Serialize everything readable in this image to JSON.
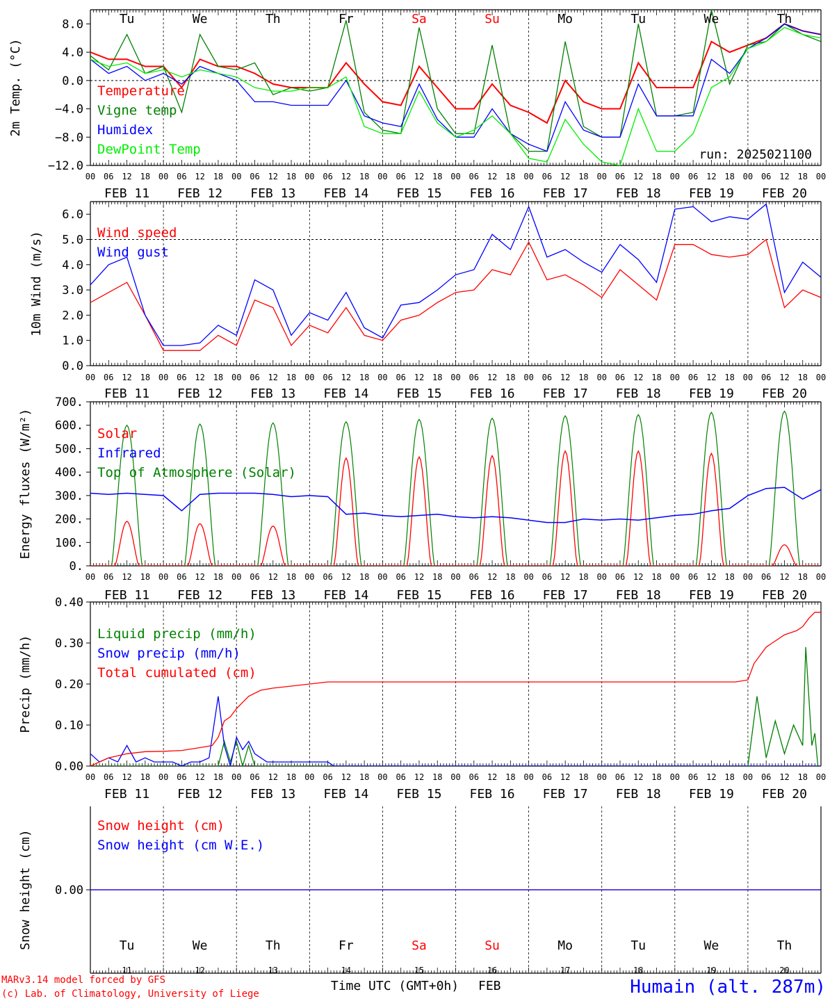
{
  "footer": {
    "credit_line1": "MARv3.14 model forced by GFS",
    "credit_line2": "(c) Lab. of Climatology, University of Liege",
    "xlabel": "Time UTC (GMT+0h)",
    "month": "FEB",
    "station": "Humain (alt. 287m)"
  },
  "colors": {
    "red": "#ff0000",
    "green": "#008000",
    "blue": "#0000ff",
    "lightgreen": "#00ee00",
    "sat_sun": "#ff0000",
    "weekday": "#000000"
  },
  "days": {
    "weekdays": [
      "Tu",
      "We",
      "Th",
      "Fr",
      "Sa",
      "Su",
      "Mo",
      "Tu",
      "We",
      "Th"
    ],
    "weekend": [
      false,
      false,
      false,
      false,
      true,
      true,
      false,
      false,
      false,
      false
    ],
    "dates": [
      "FEB 11",
      "FEB 12",
      "FEB 13",
      "FEB 14",
      "FEB 15",
      "FEB 16",
      "FEB 17",
      "FEB 18",
      "FEB 19",
      "FEB 20"
    ],
    "day_numbers": [
      "11",
      "12",
      "13",
      "14",
      "15",
      "16",
      "17",
      "18",
      "19",
      "20"
    ],
    "hour_labels": [
      "00",
      "06",
      "12",
      "18"
    ],
    "final_hour": "00"
  },
  "chart_data": [
    {
      "type": "line",
      "ylabel": "2m Temp. (°C)",
      "ylim": [
        -12,
        10
      ],
      "yticks": [
        "8.0",
        "4.0",
        "0.0",
        "−4.0",
        "−8.0",
        "−12.0"
      ],
      "ytick_values": [
        8,
        4,
        0,
        -4,
        -8,
        -12
      ],
      "annotation": "run: 2025021100",
      "x_unit": "hours since FEB 11 00 UTC",
      "series": [
        {
          "name": "Temperature",
          "color": "#ff0000",
          "x": [
            0,
            6,
            12,
            18,
            24,
            30,
            36,
            42,
            48,
            54,
            60,
            66,
            72,
            78,
            84,
            90,
            96,
            102,
            108,
            114,
            120,
            126,
            132,
            138,
            144,
            150,
            156,
            162,
            168,
            174,
            180,
            186,
            192,
            198,
            204,
            210,
            216,
            222,
            228,
            234,
            240
          ],
          "values": [
            4.0,
            3.0,
            3.0,
            2.0,
            2.0,
            -1.0,
            3.0,
            2.0,
            2.0,
            1.0,
            -0.5,
            -1.0,
            -1.0,
            -1.0,
            2.5,
            -0.5,
            -3.0,
            -3.5,
            2.0,
            -1.0,
            -4.0,
            -4.0,
            -0.5,
            -3.5,
            -4.5,
            -6.0,
            0.0,
            -3.0,
            -4.0,
            -4.0,
            2.5,
            -1.0,
            -1.0,
            -1.0,
            5.5,
            4.0,
            5.0,
            6.0,
            8.0,
            7.0,
            6.5
          ]
        },
        {
          "name": "Vigne temp",
          "color": "#008000",
          "x": [
            0,
            6,
            12,
            18,
            24,
            30,
            36,
            42,
            48,
            54,
            60,
            66,
            72,
            78,
            84,
            90,
            96,
            102,
            108,
            114,
            120,
            126,
            132,
            138,
            144,
            150,
            156,
            162,
            168,
            174,
            180,
            186,
            192,
            198,
            204,
            210,
            216,
            222,
            228,
            234,
            240
          ],
          "values": [
            3.5,
            1.5,
            6.5,
            1.0,
            2.0,
            -4.5,
            6.5,
            2.0,
            1.5,
            2.5,
            -2.0,
            -1.0,
            -1.5,
            -1.0,
            8.5,
            -4.5,
            -7.0,
            -7.5,
            7.5,
            -4.0,
            -7.5,
            -7.5,
            5.0,
            -7.5,
            -10.0,
            -10.0,
            5.5,
            -6.5,
            -8.0,
            -8.0,
            8.0,
            -5.0,
            -5.0,
            -4.5,
            10.0,
            -0.5,
            5.0,
            5.5,
            8.0,
            6.5,
            5.5
          ]
        },
        {
          "name": "Humidex",
          "color": "#0000ff",
          "x": [
            0,
            6,
            12,
            18,
            24,
            30,
            36,
            42,
            48,
            54,
            60,
            66,
            72,
            78,
            84,
            90,
            96,
            102,
            108,
            114,
            120,
            126,
            132,
            138,
            144,
            150,
            156,
            162,
            168,
            174,
            180,
            186,
            192,
            198,
            204,
            210,
            216,
            222,
            228,
            234,
            240
          ],
          "values": [
            3.0,
            1.0,
            2.0,
            0.0,
            1.0,
            -0.5,
            2.0,
            1.0,
            0.0,
            -3.0,
            -3.0,
            -3.5,
            -3.5,
            -3.5,
            0.0,
            -5.0,
            -6.0,
            -6.5,
            -0.5,
            -5.5,
            -8.0,
            -8.0,
            -4.0,
            -7.5,
            -9.0,
            -10.0,
            -3.0,
            -7.0,
            -8.0,
            -8.0,
            -0.5,
            -5.0,
            -5.0,
            -5.0,
            3.0,
            1.0,
            4.5,
            6.0,
            8.0,
            7.0,
            6.5
          ]
        },
        {
          "name": "DewPoint Temp",
          "color": "#00ee00",
          "x": [
            0,
            6,
            12,
            18,
            24,
            30,
            36,
            42,
            48,
            54,
            60,
            66,
            72,
            78,
            84,
            90,
            96,
            102,
            108,
            114,
            120,
            126,
            132,
            138,
            144,
            150,
            156,
            162,
            168,
            174,
            180,
            186,
            192,
            198,
            204,
            210,
            216,
            222,
            228,
            234,
            240
          ],
          "values": [
            3.0,
            2.0,
            2.5,
            1.0,
            1.5,
            0.5,
            1.5,
            1.0,
            0.5,
            -1.0,
            -1.5,
            -1.5,
            -1.0,
            -1.0,
            0.5,
            -6.5,
            -7.5,
            -7.5,
            -1.5,
            -6.0,
            -8.0,
            -7.0,
            -5.0,
            -7.5,
            -11.0,
            -11.5,
            -5.5,
            -9.0,
            -11.5,
            -12.0,
            -4.0,
            -10.0,
            -10.0,
            -7.5,
            -1.0,
            0.5,
            4.5,
            5.5,
            7.5,
            6.5,
            6.0
          ]
        }
      ]
    },
    {
      "type": "line",
      "ylabel": "10m Wind (m/s)",
      "ylim": [
        0,
        6.5
      ],
      "yticks": [
        "6.0",
        "5.0",
        "4.0",
        "3.0",
        "2.0",
        "1.0",
        "0.0"
      ],
      "ytick_values": [
        6,
        5,
        4,
        3,
        2,
        1,
        0
      ],
      "x_unit": "hours since FEB 11 00 UTC",
      "series": [
        {
          "name": "Wind speed",
          "color": "#ff0000",
          "x": [
            0,
            6,
            12,
            18,
            24,
            30,
            36,
            42,
            48,
            54,
            60,
            66,
            72,
            78,
            84,
            90,
            96,
            102,
            108,
            114,
            120,
            126,
            132,
            138,
            144,
            150,
            156,
            162,
            168,
            174,
            180,
            186,
            192,
            198,
            204,
            210,
            216,
            222,
            228,
            234,
            240
          ],
          "values": [
            2.5,
            2.9,
            3.3,
            2.0,
            0.6,
            0.6,
            0.6,
            1.2,
            0.8,
            2.6,
            2.3,
            0.8,
            1.6,
            1.3,
            2.3,
            1.2,
            1.0,
            1.8,
            2.0,
            2.5,
            2.9,
            3.0,
            3.8,
            3.6,
            4.9,
            3.4,
            3.6,
            3.2,
            2.7,
            3.8,
            3.2,
            2.6,
            4.8,
            4.8,
            4.4,
            4.3,
            4.4,
            5.0,
            2.3,
            3.0,
            2.7
          ]
        },
        {
          "name": "Wind gust",
          "color": "#0000ff",
          "x": [
            0,
            6,
            12,
            18,
            24,
            30,
            36,
            42,
            48,
            54,
            60,
            66,
            72,
            78,
            84,
            90,
            96,
            102,
            108,
            114,
            120,
            126,
            132,
            138,
            144,
            150,
            156,
            162,
            168,
            174,
            180,
            186,
            192,
            198,
            204,
            210,
            216,
            222,
            228,
            234,
            240
          ],
          "values": [
            3.2,
            4.0,
            4.3,
            2.0,
            0.8,
            0.8,
            0.9,
            1.6,
            1.2,
            3.4,
            3.0,
            1.2,
            2.1,
            1.8,
            2.9,
            1.5,
            1.1,
            2.4,
            2.5,
            3.0,
            3.6,
            3.8,
            5.2,
            4.6,
            6.3,
            4.3,
            4.6,
            4.1,
            3.7,
            4.8,
            4.2,
            3.3,
            6.2,
            6.3,
            5.7,
            5.9,
            5.8,
            6.4,
            2.9,
            4.1,
            3.5
          ]
        }
      ]
    },
    {
      "type": "line",
      "ylabel": "Energy fluxes (W/m²)",
      "ylim": [
        0,
        700
      ],
      "yticks": [
        "700.",
        "600.",
        "500.",
        "400.",
        "300.",
        "200.",
        "100.",
        "0."
      ],
      "ytick_values": [
        700,
        600,
        500,
        400,
        300,
        200,
        100,
        0
      ],
      "x_unit": "hours since FEB 11 00 UTC",
      "daily_peaks": {
        "solar": [
          190,
          180,
          170,
          460,
          465,
          470,
          490,
          490,
          480,
          90
        ],
        "top_of_atmosphere": [
          600,
          605,
          610,
          615,
          625,
          630,
          640,
          645,
          655,
          660
        ]
      },
      "series": [
        {
          "name": "Solar",
          "color": "#ff0000",
          "note": "daily curve between ~08 and ~16 UTC, peaks listed in daily_peaks.solar"
        },
        {
          "name": "Infrared",
          "color": "#0000ff",
          "x": [
            0,
            6,
            12,
            18,
            24,
            30,
            36,
            42,
            48,
            54,
            60,
            66,
            72,
            78,
            84,
            90,
            96,
            102,
            108,
            114,
            120,
            126,
            132,
            138,
            144,
            150,
            156,
            162,
            168,
            174,
            180,
            186,
            192,
            198,
            204,
            210,
            216,
            222,
            228,
            234,
            240
          ],
          "values": [
            310,
            305,
            310,
            305,
            300,
            235,
            305,
            310,
            310,
            310,
            305,
            295,
            300,
            295,
            220,
            225,
            215,
            210,
            215,
            220,
            210,
            205,
            210,
            205,
            195,
            185,
            185,
            200,
            195,
            200,
            195,
            205,
            215,
            220,
            235,
            245,
            300,
            330,
            335,
            285,
            325
          ]
        },
        {
          "name": "Top of Atmosphere (Solar)",
          "color": "#008000",
          "note": "daily curve between ~07 and ~17 UTC, peaks listed in daily_peaks.top_of_atmosphere"
        }
      ]
    },
    {
      "type": "line",
      "ylabel": "Precip (mm/h)",
      "ylim": [
        0,
        0.4
      ],
      "yticks": [
        "0.40",
        "0.30",
        "0.20",
        "0.10",
        "0.00"
      ],
      "ytick_values": [
        0.4,
        0.3,
        0.2,
        0.1,
        0.0
      ],
      "x_unit": "hours since FEB 11 00 UTC",
      "series": [
        {
          "name": "Liquid precip (mm/h)",
          "color": "#008000",
          "x": [
            0,
            42,
            44,
            46,
            48,
            50,
            52,
            54,
            216,
            219,
            222,
            225,
            228,
            231,
            234,
            235,
            237,
            238,
            239,
            240
          ],
          "values": [
            0,
            0,
            0.06,
            0.01,
            0.06,
            0.0,
            0.05,
            0.0,
            0,
            0.17,
            0.02,
            0.11,
            0.03,
            0.1,
            0.05,
            0.29,
            0.05,
            0.08,
            0.0,
            0
          ]
        },
        {
          "name": "Snow precip (mm/h)",
          "color": "#0000ff",
          "x": [
            0,
            3,
            6,
            9,
            12,
            15,
            18,
            21,
            24,
            27,
            30,
            33,
            36,
            39,
            42,
            44,
            46,
            48,
            50,
            52,
            54,
            56,
            58,
            60,
            66,
            72,
            76,
            78,
            80,
            240
          ],
          "values": [
            0.03,
            0.01,
            0.02,
            0.01,
            0.05,
            0.01,
            0.02,
            0.01,
            0.01,
            0.01,
            0.0,
            0.01,
            0.01,
            0.02,
            0.17,
            0.05,
            0.0,
            0.07,
            0.04,
            0.06,
            0.03,
            0.02,
            0.01,
            0.01,
            0.01,
            0.01,
            0.01,
            0.01,
            0.0,
            0.0
          ]
        },
        {
          "name": "Total cumulated (cm)",
          "color": "#ff0000",
          "x": [
            0,
            6,
            12,
            18,
            24,
            30,
            36,
            40,
            42,
            44,
            46,
            48,
            52,
            56,
            60,
            66,
            72,
            78,
            84,
            96,
            120,
            144,
            168,
            192,
            212,
            216,
            218,
            220,
            222,
            224,
            228,
            232,
            234,
            236,
            238,
            240
          ],
          "values": [
            0.0,
            0.02,
            0.03,
            0.035,
            0.036,
            0.038,
            0.045,
            0.05,
            0.07,
            0.11,
            0.12,
            0.14,
            0.17,
            0.185,
            0.19,
            0.195,
            0.2,
            0.205,
            0.205,
            0.205,
            0.205,
            0.205,
            0.205,
            0.205,
            0.205,
            0.21,
            0.25,
            0.27,
            0.29,
            0.3,
            0.32,
            0.33,
            0.34,
            0.36,
            0.375,
            0.375
          ]
        }
      ]
    },
    {
      "type": "line",
      "ylabel": "Snow height (cm)",
      "yticks": [
        "0.00"
      ],
      "ytick_values": [
        0.0
      ],
      "x_unit": "hours since FEB 11 00 UTC",
      "series": [
        {
          "name": "Snow height (cm)",
          "color": "#ff0000",
          "x": [
            0,
            240
          ],
          "values": [
            0,
            0
          ]
        },
        {
          "name": "Snow height (cm W.E.)",
          "color": "#0000ff",
          "x": [
            0,
            240
          ],
          "values": [
            0,
            0
          ]
        }
      ]
    }
  ]
}
